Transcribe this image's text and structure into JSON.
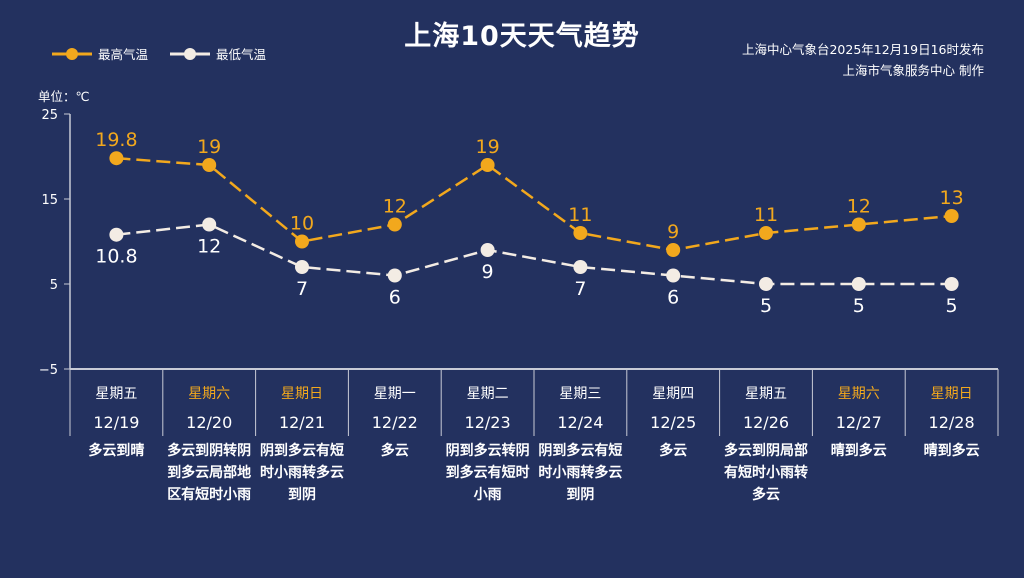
{
  "chart_data": {
    "type": "line",
    "title": "上海10天天气趋势",
    "publisher": "上海中心气象台2025年12月19日16时发布",
    "producer": "上海市气象服务中心  制作",
    "unit_label": "单位：℃",
    "ylim": [
      -5,
      25
    ],
    "yticks": [
      25,
      15,
      5,
      -5
    ],
    "weekdays": [
      "星期五",
      "星期六",
      "星期日",
      "星期一",
      "星期二",
      "星期三",
      "星期四",
      "星期五",
      "星期六",
      "星期日"
    ],
    "weekend": [
      false,
      true,
      true,
      false,
      false,
      false,
      false,
      false,
      true,
      true
    ],
    "dates": [
      "12/19",
      "12/20",
      "12/21",
      "12/22",
      "12/23",
      "12/24",
      "12/25",
      "12/26",
      "12/27",
      "12/28"
    ],
    "weather": [
      "多云到晴",
      "多云到阴转阴到多云局部地区有短时小雨",
      "阴到多云有短时小雨转多云到阴",
      "多云",
      "阴到多云转阴到多云有短时小雨",
      "阴到多云有短时小雨转多云到阴",
      "多云",
      "多云到阴局部有短时小雨转多云",
      "晴到多云",
      "晴到多云"
    ],
    "series": [
      {
        "name": "最高气温",
        "color": "#f2a81d",
        "values": [
          19.8,
          19,
          10,
          12,
          19,
          11,
          9,
          11,
          12,
          13
        ]
      },
      {
        "name": "最低气温",
        "color": "#f3ece4",
        "values": [
          10.8,
          12,
          7,
          6,
          9,
          7,
          6,
          5,
          5,
          5
        ]
      }
    ]
  }
}
